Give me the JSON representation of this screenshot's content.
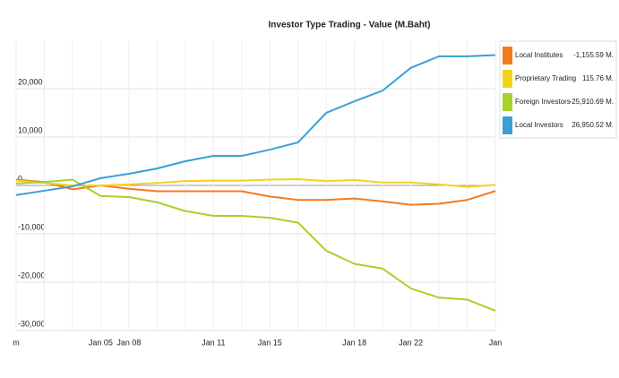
{
  "chart_data": {
    "type": "line",
    "title": "Investor Type Trading - Value (M.Baht)",
    "categories": [
      "m",
      null,
      null,
      "Jan 05",
      "Jan 08",
      null,
      null,
      "Jan 11",
      null,
      "Jan 15",
      null,
      null,
      "Jan 18",
      null,
      "Jan 22",
      null,
      null,
      "Jan"
    ],
    "series": [
      {
        "name": "Local Institutes",
        "color": "#f47a20",
        "total_label": "-1,155.59 M.",
        "values": [
          1200,
          700,
          -800,
          0,
          -700,
          -1200,
          -1200,
          -1200,
          -1200,
          -2300,
          -3000,
          -3000,
          -2700,
          -3300,
          -4000,
          -3800,
          -3000,
          -1156
        ]
      },
      {
        "name": "Proprietary Trading",
        "color": "#f5d21a",
        "total_label": "115.76 M.",
        "values": [
          1000,
          500,
          0,
          0,
          200,
          500,
          900,
          1000,
          1000,
          1200,
          1300,
          900,
          1100,
          600,
          600,
          200,
          -300,
          116
        ]
      },
      {
        "name": "Foreign Investors",
        "color": "#a8d12a",
        "total_label": "-25,910.69 M.",
        "values": [
          400,
          700,
          1200,
          -2200,
          -2400,
          -3500,
          -5300,
          -6300,
          -6300,
          -6700,
          -7700,
          -13500,
          -16200,
          -17200,
          -21300,
          -23200,
          -23600,
          -25911
        ]
      },
      {
        "name": "Local Investors",
        "color": "#3a9fd6",
        "total_label": "26,950.52 M.",
        "values": [
          -2000,
          -1100,
          -200,
          1500,
          2400,
          3500,
          5000,
          6100,
          6100,
          7400,
          8900,
          15000,
          17400,
          19600,
          24300,
          26700,
          26700,
          26950
        ]
      }
    ],
    "ylim": [
      -30000,
      30000
    ],
    "yticks": [
      {
        "value": -30000,
        "label": "-30,000"
      },
      {
        "value": -20000,
        "label": "-20,000"
      },
      {
        "value": -10000,
        "label": "-10,000"
      },
      0,
      {
        "value": 10000,
        "label": "10,000"
      },
      {
        "value": 20000,
        "label": "20,000"
      }
    ],
    "grid": true
  }
}
